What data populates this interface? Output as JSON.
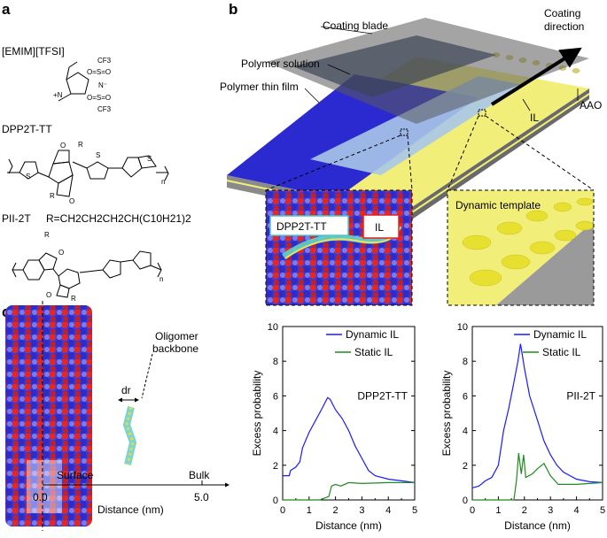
{
  "panels": {
    "a": "a",
    "b": "b",
    "c": "c"
  },
  "panel_a": {
    "il_name": "[EMIM][TFSI]",
    "polymer1": "DPP2T-TT",
    "polymer2": "PII-2T",
    "r_group": "R=CH2CH2CH2CH(C10H21)2",
    "atoms": {
      "cf3": "CF3",
      "so2": "O=S=O",
      "n_minus": "N⁻",
      "n_plus": "+N",
      "n": "N",
      "s": "S",
      "o": "O",
      "r": "R",
      "sub_n": "n"
    }
  },
  "panel_b": {
    "coating_blade": "Coating blade",
    "coating_direction_1": "Coating",
    "coating_direction_2": "direction",
    "polymer_solution": "Polymer solution",
    "polymer_thin_film": "Polymer thin film",
    "il": "IL",
    "aao": "AAO",
    "inset_left_polymer": "DPP2T-TT",
    "inset_left_il": "IL",
    "inset_right": "Dynamic template",
    "colors": {
      "film": "#2a2ad0",
      "solution": "#a9c6e8",
      "il": "#f2ee7a",
      "blade": "#6e6e6e",
      "substrate": "#9a9a9a"
    }
  },
  "panel_c": {
    "oligomer_1": "Oligomer",
    "oligomer_2": "backbone",
    "dr": "dr",
    "surface": "Surface",
    "bulk": "Bulk",
    "start": "0.0",
    "end": "5.0",
    "axis": "Distance (nm)"
  },
  "chart_data": [
    {
      "type": "line",
      "annotation": "DPP2T-TT",
      "xlabel": "Distance (nm)",
      "ylabel": "Excess probability",
      "xlim": [
        0,
        5
      ],
      "ylim": [
        0,
        10
      ],
      "xticks": [
        "0",
        "1",
        "2",
        "3",
        "4",
        "5"
      ],
      "yticks": [
        "0",
        "2",
        "4",
        "6",
        "8",
        "10"
      ],
      "grid": false,
      "legend": "top-right",
      "series": [
        {
          "name": "Dynamic IL",
          "color": "#1a1aff",
          "x": [
            0,
            0.25,
            0.3,
            0.5,
            0.65,
            0.75,
            1,
            1.25,
            1.5,
            1.7,
            1.8,
            2,
            2.25,
            2.5,
            2.75,
            3,
            3.25,
            3.5,
            4,
            4.5,
            5
          ],
          "y": [
            1.4,
            1.4,
            1.7,
            1.9,
            2.2,
            3.0,
            3.9,
            4.6,
            5.3,
            5.9,
            5.8,
            5.2,
            4.7,
            4.0,
            3.1,
            2.4,
            1.7,
            1.4,
            1.2,
            1.1,
            1.0
          ]
        },
        {
          "name": "Static IL",
          "color": "#1f8a1f",
          "x": [
            0,
            1.4,
            1.75,
            1.85,
            2,
            2.2,
            2.5,
            3,
            4,
            5
          ],
          "y": [
            0,
            0,
            0.2,
            0.8,
            0.9,
            0.8,
            1.0,
            0.95,
            1.0,
            1.0
          ]
        }
      ]
    },
    {
      "type": "line",
      "annotation": "PII-2T",
      "xlabel": "Distance (nm)",
      "ylabel": "Excess probability",
      "xlim": [
        0,
        5
      ],
      "ylim": [
        0,
        10
      ],
      "xticks": [
        "0",
        "1",
        "2",
        "3",
        "4",
        "5"
      ],
      "yticks": [
        "0",
        "2",
        "4",
        "6",
        "8",
        "10"
      ],
      "grid": false,
      "legend": "top-right",
      "series": [
        {
          "name": "Dynamic IL",
          "color": "#1a1aff",
          "x": [
            0,
            0.25,
            0.5,
            0.75,
            1,
            1.2,
            1.4,
            1.6,
            1.75,
            1.85,
            2,
            2.2,
            2.5,
            2.75,
            3,
            3.25,
            3.5,
            4,
            4.5,
            5
          ],
          "y": [
            0.7,
            0.8,
            1.1,
            1.3,
            2.0,
            4.0,
            5.3,
            6.8,
            8.0,
            9.0,
            7.6,
            6.0,
            4.6,
            3.4,
            2.6,
            2.0,
            1.6,
            1.2,
            1.05,
            1.0
          ]
        },
        {
          "name": "Static IL",
          "color": "#1f8a1f",
          "x": [
            0,
            1.6,
            1.7,
            1.78,
            1.88,
            1.97,
            2.05,
            2.3,
            2.5,
            2.75,
            3,
            3.3,
            4,
            5
          ],
          "y": [
            0,
            0,
            1.2,
            2.7,
            1.5,
            2.6,
            1.3,
            1.5,
            1.8,
            2.1,
            1.4,
            0.9,
            0.9,
            1.0
          ]
        }
      ]
    }
  ]
}
